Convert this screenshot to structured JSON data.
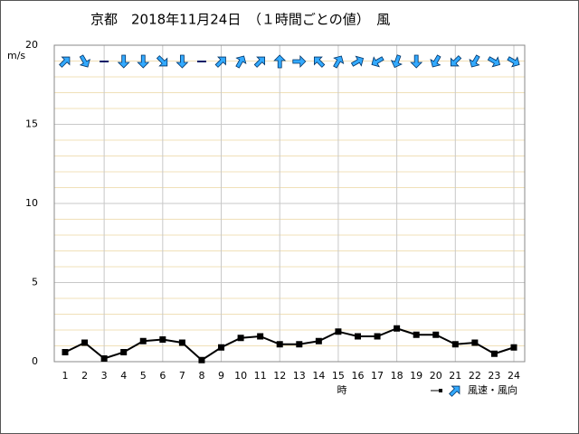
{
  "chart_data": {
    "type": "line",
    "title": "京都　2018年11月24日　（１時間ごとの値）　風",
    "y_label": "m/s",
    "x_label": "時",
    "legend_label": "風速・風向",
    "categories": [
      "1",
      "2",
      "3",
      "4",
      "5",
      "6",
      "7",
      "8",
      "9",
      "10",
      "11",
      "12",
      "13",
      "14",
      "15",
      "16",
      "17",
      "18",
      "19",
      "20",
      "21",
      "22",
      "23",
      "24"
    ],
    "series": [
      {
        "name": "風速",
        "color": "#000000",
        "values": [
          0.6,
          1.2,
          0.2,
          0.6,
          1.3,
          1.4,
          1.2,
          0.1,
          0.9,
          1.5,
          1.6,
          1.1,
          1.1,
          1.3,
          1.9,
          1.6,
          1.6,
          2.1,
          1.7,
          1.7,
          1.1,
          1.2,
          0.5,
          0.9
        ]
      }
    ],
    "direction_deg": [
      45,
      150,
      null,
      180,
      180,
      135,
      180,
      null,
      45,
      30,
      45,
      0,
      90,
      315,
      30,
      60,
      240,
      200,
      180,
      210,
      225,
      210,
      120,
      120
    ],
    "arrow_color": "#33aaff",
    "ylim": [
      0,
      20
    ],
    "yticks": [
      0,
      5,
      10,
      15,
      20
    ],
    "minor_yticks": [
      1,
      2,
      3,
      4,
      6,
      7,
      8,
      9,
      11,
      12,
      13,
      14,
      16,
      17,
      18,
      19
    ]
  }
}
